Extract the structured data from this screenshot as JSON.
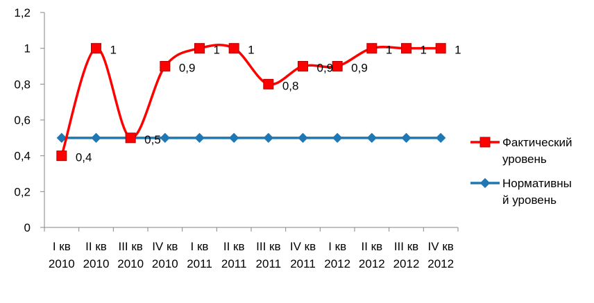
{
  "chart_data": {
    "type": "line",
    "categories": [
      [
        "I кв",
        "2010"
      ],
      [
        "II кв",
        "2010"
      ],
      [
        "III кв",
        "2010"
      ],
      [
        "IV кв",
        "2010"
      ],
      [
        "I кв",
        "2011"
      ],
      [
        "II кв",
        "2011"
      ],
      [
        "III кв",
        "2011"
      ],
      [
        "IV кв",
        "2011"
      ],
      [
        "I кв",
        "2012"
      ],
      [
        "II кв",
        "2012"
      ],
      [
        "III кв",
        "2012"
      ],
      [
        "IV кв",
        "2012"
      ]
    ],
    "series": [
      {
        "name_lines": [
          "Фактический",
          "уровень"
        ],
        "values": [
          0.4,
          1,
          0.5,
          0.9,
          1,
          1,
          0.8,
          0.9,
          0.9,
          1,
          1,
          1
        ],
        "data_labels": [
          "0,4",
          "1",
          "0,5",
          "0,9",
          "1",
          "1",
          "0,8",
          "0,9",
          "0,9",
          "1",
          "1",
          "1"
        ],
        "color": "#FF0000",
        "marker": "square",
        "smooth": true
      },
      {
        "name_lines": [
          "Нормативны",
          "й уровень"
        ],
        "values": [
          0.5,
          0.5,
          0.5,
          0.5,
          0.5,
          0.5,
          0.5,
          0.5,
          0.5,
          0.5,
          0.5,
          0.5
        ],
        "color": "#1F77B4",
        "marker": "diamond",
        "smooth": false
      }
    ],
    "ylim": [
      0,
      1.2
    ],
    "yticks": [
      0,
      0.2,
      0.4,
      0.6,
      0.8,
      1,
      1.2
    ],
    "ytick_labels": [
      "0",
      "0,2",
      "0,4",
      "0,6",
      "0,8",
      "1",
      "1,2"
    ],
    "grid": false,
    "legend_position": "right"
  }
}
